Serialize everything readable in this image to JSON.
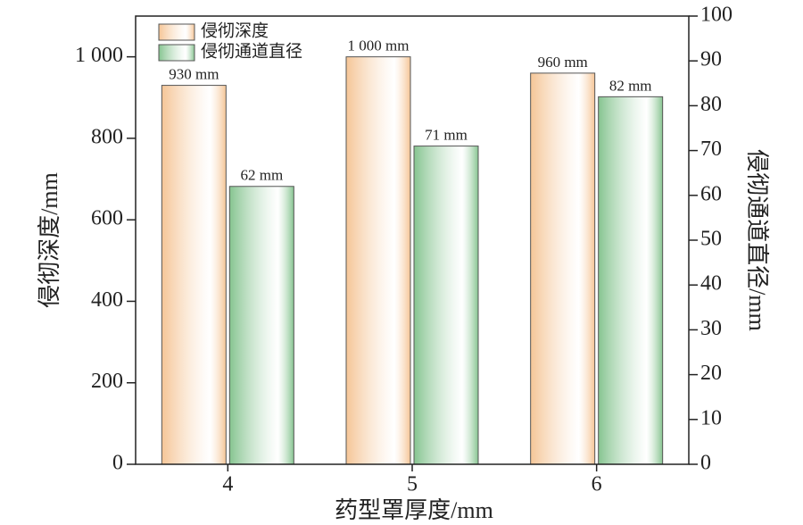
{
  "chart_data": {
    "type": "bar",
    "x_label": "药型罩厚度/mm",
    "y_label": "侵彻深度/mm",
    "y2_label": "侵彻通道直径/mm",
    "categories": [
      "4",
      "5",
      "6"
    ],
    "series": [
      {
        "name": "侵彻深度",
        "color": "#f5c596",
        "values": [
          930,
          1000,
          960
        ],
        "value_labels": [
          "930 mm",
          "1 000 mm",
          "960 mm"
        ]
      },
      {
        "name": "侵彻通道直径",
        "color": "#86c490",
        "axis": "y2",
        "values": [
          62,
          71,
          82
        ],
        "value_labels": [
          "62 mm",
          "71 mm",
          "82 mm"
        ]
      }
    ],
    "ylim": [
      0,
      1100
    ],
    "yticks": [
      0,
      200,
      400,
      600,
      800,
      {
        "value": 1000,
        "label": "1 000"
      }
    ],
    "y2lim": [
      0,
      100
    ],
    "y2ticks": [
      0,
      10,
      20,
      30,
      40,
      50,
      60,
      70,
      80,
      90,
      100
    ],
    "legend": "upper-left"
  }
}
